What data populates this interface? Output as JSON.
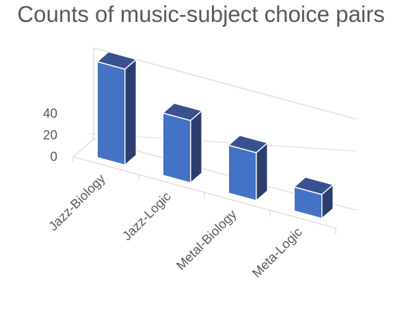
{
  "chart_data": {
    "type": "bar",
    "title": "Counts of music-subject choice pairs",
    "categories": [
      "Jazz-Biology",
      "Jazz-Logic",
      "Metal-Biology",
      "Meta-Logic"
    ],
    "values": [
      40,
      26,
      20,
      10
    ],
    "ylim": [
      0,
      40
    ],
    "yticks": [
      0,
      20,
      40
    ],
    "grid": false,
    "legend": "none",
    "colors": {
      "bar_front": "#4472C4",
      "bar_top": "#3A5190",
      "bar_side": "#2C3E6E",
      "axis": "#D9D9D9",
      "text": "#595959"
    }
  }
}
